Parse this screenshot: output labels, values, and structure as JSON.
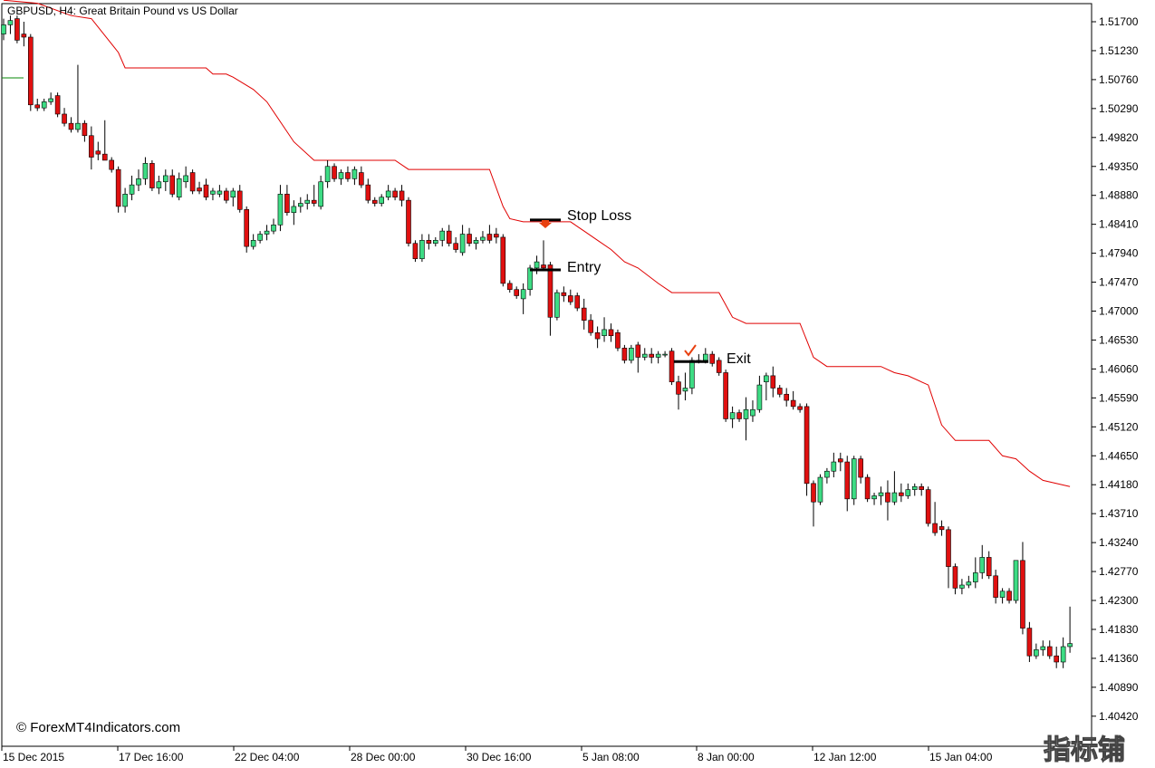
{
  "window": {
    "symbol_line": "GBPUSD, H4:  Great Britain Pound vs US Dollar",
    "watermark": "© ForexMT4Indicators.com",
    "corner_logo": "指标铺"
  },
  "colors": {
    "bull": "#3ddc84",
    "bear": "#e01010",
    "wick": "#000000",
    "indicator": "#e00000",
    "annotation_line": "#000000",
    "arrow": "#e84010",
    "check": "#e84010",
    "grid": "none",
    "background": "#ffffff"
  },
  "annotations": {
    "stop_loss": "Stop Loss",
    "entry": "Entry",
    "exit": "Exit"
  },
  "icons": {
    "stop_arrow": "down-arrow-icon",
    "exit_check": "checkmark-icon"
  },
  "chart_data": {
    "type": "candlestick",
    "title": "GBPUSD, H4:  Great Britain Pound vs US Dollar",
    "ylim": [
      1.4,
      1.52
    ],
    "y_ticks": [
      "1.51700",
      "1.51230",
      "1.50760",
      "1.50290",
      "1.49820",
      "1.49350",
      "1.48880",
      "1.48410",
      "1.47940",
      "1.47470",
      "1.47000",
      "1.46530",
      "1.46060",
      "1.45590",
      "1.45120",
      "1.44650",
      "1.44180",
      "1.43710",
      "1.43240",
      "1.42770",
      "1.42300",
      "1.41830",
      "1.41360",
      "1.40890",
      "1.40420"
    ],
    "x_labels": [
      "15 Dec 2015",
      "17 Dec 16:00",
      "22 Dec 04:00",
      "28 Dec 00:00",
      "30 Dec 16:00",
      "5 Jan 08:00",
      "8 Jan 00:00",
      "12 Jan 12:00",
      "15 Jan 04:00"
    ],
    "grid": false,
    "levels": {
      "stop_loss": 1.4848,
      "entry": 1.4767,
      "exit": 1.4618
    },
    "candles": [
      [
        1.515,
        1.5175,
        1.514,
        1.5165
      ],
      [
        1.5165,
        1.518,
        1.515,
        1.5172
      ],
      [
        1.5175,
        1.518,
        1.5135,
        1.514
      ],
      [
        1.515,
        1.517,
        1.513,
        1.5145
      ],
      [
        1.5145,
        1.515,
        1.5025,
        1.5035
      ],
      [
        1.5035,
        1.5045,
        1.5025,
        1.503
      ],
      [
        1.503,
        1.5045,
        1.5025,
        1.504
      ],
      [
        1.504,
        1.5055,
        1.5035,
        1.5045
      ],
      [
        1.505,
        1.5055,
        1.5015,
        1.502
      ],
      [
        1.502,
        1.503,
        1.5,
        1.5005
      ],
      [
        1.5005,
        1.5015,
        1.499,
        1.4995
      ],
      [
        1.4995,
        1.51,
        1.499,
        1.5005
      ],
      [
        1.5005,
        1.501,
        1.4975,
        1.4985
      ],
      [
        1.4985,
        1.5,
        1.493,
        1.495
      ],
      [
        1.496,
        1.4975,
        1.4945,
        1.4955
      ],
      [
        1.4955,
        1.501,
        1.4945,
        1.4945
      ],
      [
        1.4945,
        1.495,
        1.4925,
        1.493
      ],
      [
        1.493,
        1.4935,
        1.486,
        1.487
      ],
      [
        1.487,
        1.49,
        1.486,
        1.489
      ],
      [
        1.489,
        1.492,
        1.488,
        1.4905
      ],
      [
        1.4905,
        1.493,
        1.4895,
        1.4915
      ],
      [
        1.4915,
        1.495,
        1.4905,
        1.494
      ],
      [
        1.494,
        1.4945,
        1.4895,
        1.49
      ],
      [
        1.49,
        1.492,
        1.489,
        1.491
      ],
      [
        1.491,
        1.493,
        1.4895,
        1.492
      ],
      [
        1.492,
        1.493,
        1.4885,
        1.489
      ],
      [
        1.4885,
        1.4925,
        1.488,
        1.4915
      ],
      [
        1.491,
        1.4935,
        1.49,
        1.492
      ],
      [
        1.4925,
        1.493,
        1.489,
        1.4895
      ],
      [
        1.49,
        1.491,
        1.489,
        1.4895
      ],
      [
        1.4905,
        1.4915,
        1.488,
        1.4885
      ],
      [
        1.489,
        1.49,
        1.488,
        1.4895
      ],
      [
        1.489,
        1.4905,
        1.4885,
        1.4895
      ],
      [
        1.4895,
        1.49,
        1.4875,
        1.488
      ],
      [
        1.4885,
        1.49,
        1.487,
        1.4895
      ],
      [
        1.4895,
        1.4905,
        1.486,
        1.4865
      ],
      [
        1.4865,
        1.487,
        1.4795,
        1.4805
      ],
      [
        1.4805,
        1.4825,
        1.48,
        1.4815
      ],
      [
        1.4815,
        1.483,
        1.481,
        1.4825
      ],
      [
        1.4825,
        1.484,
        1.4815,
        1.483
      ],
      [
        1.483,
        1.485,
        1.4825,
        1.484
      ],
      [
        1.484,
        1.4905,
        1.483,
        1.489
      ],
      [
        1.489,
        1.4905,
        1.4855,
        1.486
      ],
      [
        1.486,
        1.488,
        1.484,
        1.487
      ],
      [
        1.487,
        1.4885,
        1.486,
        1.4875
      ],
      [
        1.4875,
        1.489,
        1.4865,
        1.488
      ],
      [
        1.488,
        1.4905,
        1.487,
        1.4875
      ],
      [
        1.487,
        1.492,
        1.4865,
        1.491
      ],
      [
        1.491,
        1.4945,
        1.49,
        1.4935
      ],
      [
        1.4935,
        1.494,
        1.491,
        1.4915
      ],
      [
        1.4915,
        1.493,
        1.4905,
        1.4925
      ],
      [
        1.4925,
        1.4935,
        1.491,
        1.4915
      ],
      [
        1.4915,
        1.4935,
        1.4905,
        1.493
      ],
      [
        1.4925,
        1.4935,
        1.49,
        1.4905
      ],
      [
        1.4905,
        1.4915,
        1.4875,
        1.488
      ],
      [
        1.488,
        1.4885,
        1.487,
        1.4875
      ],
      [
        1.4875,
        1.489,
        1.487,
        1.4885
      ],
      [
        1.4885,
        1.4905,
        1.488,
        1.4895
      ],
      [
        1.4895,
        1.49,
        1.488,
        1.4885
      ],
      [
        1.4895,
        1.4905,
        1.487,
        1.488
      ],
      [
        1.488,
        1.4885,
        1.4805,
        1.481
      ],
      [
        1.481,
        1.4815,
        1.478,
        1.4785
      ],
      [
        1.4785,
        1.4825,
        1.478,
        1.4815
      ],
      [
        1.4815,
        1.4825,
        1.48,
        1.481
      ],
      [
        1.481,
        1.482,
        1.4805,
        1.4815
      ],
      [
        1.4815,
        1.4835,
        1.4805,
        1.483
      ],
      [
        1.483,
        1.484,
        1.4805,
        1.481
      ],
      [
        1.481,
        1.482,
        1.4795,
        1.48
      ],
      [
        1.4795,
        1.484,
        1.479,
        1.4825
      ],
      [
        1.4825,
        1.4835,
        1.4805,
        1.481
      ],
      [
        1.481,
        1.482,
        1.48,
        1.4815
      ],
      [
        1.4815,
        1.483,
        1.481,
        1.482
      ],
      [
        1.4825,
        1.484,
        1.481,
        1.4815
      ],
      [
        1.4825,
        1.4835,
        1.481,
        1.482
      ],
      [
        1.482,
        1.4825,
        1.474,
        1.4745
      ],
      [
        1.4745,
        1.475,
        1.473,
        1.4735
      ],
      [
        1.4735,
        1.474,
        1.472,
        1.4725
      ],
      [
        1.472,
        1.4745,
        1.4695,
        1.4735
      ],
      [
        1.4735,
        1.4775,
        1.4725,
        1.477
      ],
      [
        1.477,
        1.479,
        1.476,
        1.478
      ],
      [
        1.4775,
        1.4815,
        1.4765,
        1.477
      ],
      [
        1.4775,
        1.478,
        1.466,
        1.469
      ],
      [
        1.469,
        1.4735,
        1.4685,
        1.473
      ],
      [
        1.473,
        1.474,
        1.4715,
        1.4725
      ],
      [
        1.4725,
        1.4735,
        1.471,
        1.4715
      ],
      [
        1.4725,
        1.473,
        1.47,
        1.4705
      ],
      [
        1.4705,
        1.472,
        1.467,
        1.4685
      ],
      [
        1.4685,
        1.4695,
        1.466,
        1.4665
      ],
      [
        1.4665,
        1.4675,
        1.464,
        1.4655
      ],
      [
        1.466,
        1.469,
        1.465,
        1.467
      ],
      [
        1.467,
        1.468,
        1.465,
        1.466
      ],
      [
        1.4665,
        1.467,
        1.4635,
        1.464
      ],
      [
        1.464,
        1.4645,
        1.4615,
        1.462
      ],
      [
        1.462,
        1.4645,
        1.4615,
        1.464
      ],
      [
        1.4645,
        1.465,
        1.46,
        1.4625
      ],
      [
        1.4625,
        1.464,
        1.462,
        1.463
      ],
      [
        1.463,
        1.464,
        1.4615,
        1.4625
      ],
      [
        1.4625,
        1.4635,
        1.4615,
        1.463
      ],
      [
        1.463,
        1.4635,
        1.4625,
        1.463
      ],
      [
        1.4635,
        1.464,
        1.458,
        1.4585
      ],
      [
        1.4585,
        1.4595,
        1.454,
        1.4565
      ],
      [
        1.457,
        1.46,
        1.4555,
        1.4575
      ],
      [
        1.4575,
        1.4625,
        1.4565,
        1.462
      ],
      [
        1.462,
        1.463,
        1.4615,
        1.462
      ],
      [
        1.462,
        1.464,
        1.4615,
        1.463
      ],
      [
        1.463,
        1.4635,
        1.461,
        1.4615
      ],
      [
        1.462,
        1.4625,
        1.4595,
        1.46
      ],
      [
        1.46,
        1.4605,
        1.452,
        1.4525
      ],
      [
        1.4525,
        1.4545,
        1.451,
        1.4535
      ],
      [
        1.4535,
        1.454,
        1.452,
        1.4525
      ],
      [
        1.4525,
        1.456,
        1.449,
        1.454
      ],
      [
        1.453,
        1.4555,
        1.452,
        1.454
      ],
      [
        1.454,
        1.4595,
        1.4535,
        1.458
      ],
      [
        1.4585,
        1.46,
        1.4555,
        1.4595
      ],
      [
        1.4595,
        1.461,
        1.456,
        1.4575
      ],
      [
        1.4575,
        1.458,
        1.456,
        1.4565
      ],
      [
        1.4565,
        1.4575,
        1.4545,
        1.4555
      ],
      [
        1.4555,
        1.457,
        1.454,
        1.4545
      ],
      [
        1.4545,
        1.455,
        1.4535,
        1.454
      ],
      [
        1.4545,
        1.455,
        1.44,
        1.442
      ],
      [
        1.442,
        1.4425,
        1.435,
        1.439
      ],
      [
        1.439,
        1.4435,
        1.4385,
        1.443
      ],
      [
        1.443,
        1.4445,
        1.442,
        1.444
      ],
      [
        1.444,
        1.447,
        1.443,
        1.4455
      ],
      [
        1.446,
        1.447,
        1.444,
        1.4455
      ],
      [
        1.4455,
        1.4465,
        1.4375,
        1.4395
      ],
      [
        1.4395,
        1.4465,
        1.4385,
        1.446
      ],
      [
        1.446,
        1.4465,
        1.442,
        1.443
      ],
      [
        1.443,
        1.4435,
        1.439,
        1.4395
      ],
      [
        1.4395,
        1.4405,
        1.4385,
        1.44
      ],
      [
        1.44,
        1.4415,
        1.4385,
        1.4405
      ],
      [
        1.4405,
        1.4425,
        1.436,
        1.439
      ],
      [
        1.439,
        1.444,
        1.4385,
        1.4405
      ],
      [
        1.4405,
        1.442,
        1.439,
        1.44
      ],
      [
        1.44,
        1.442,
        1.4395,
        1.441
      ],
      [
        1.441,
        1.442,
        1.44,
        1.4415
      ],
      [
        1.4415,
        1.442,
        1.44,
        1.441
      ],
      [
        1.441,
        1.4415,
        1.435,
        1.4355
      ],
      [
        1.4355,
        1.439,
        1.4335,
        1.434
      ],
      [
        1.435,
        1.436,
        1.4335,
        1.4345
      ],
      [
        1.4345,
        1.435,
        1.425,
        1.4285
      ],
      [
        1.4285,
        1.429,
        1.424,
        1.425
      ],
      [
        1.425,
        1.4265,
        1.424,
        1.4255
      ],
      [
        1.4255,
        1.427,
        1.425,
        1.426
      ],
      [
        1.426,
        1.43,
        1.425,
        1.4275
      ],
      [
        1.4275,
        1.432,
        1.4265,
        1.43
      ],
      [
        1.43,
        1.431,
        1.4265,
        1.427
      ],
      [
        1.427,
        1.428,
        1.4225,
        1.4235
      ],
      [
        1.4235,
        1.425,
        1.4225,
        1.4245
      ],
      [
        1.4245,
        1.425,
        1.4225,
        1.423
      ],
      [
        1.423,
        1.4295,
        1.4225,
        1.4295
      ],
      [
        1.4295,
        1.4325,
        1.4175,
        1.4185
      ],
      [
        1.4185,
        1.4195,
        1.413,
        1.414
      ],
      [
        1.414,
        1.416,
        1.4135,
        1.415
      ],
      [
        1.415,
        1.4165,
        1.414,
        1.4155
      ],
      [
        1.4155,
        1.4165,
        1.4135,
        1.414
      ],
      [
        1.414,
        1.4155,
        1.412,
        1.413
      ],
      [
        1.413,
        1.417,
        1.412,
        1.4155
      ],
      [
        1.4155,
        1.422,
        1.4145,
        1.416
      ]
    ],
    "indicator_line": [
      [
        0,
        1.5205
      ],
      [
        5,
        1.52
      ],
      [
        10,
        1.518
      ],
      [
        13,
        1.5175
      ],
      [
        17,
        1.512
      ],
      [
        18,
        1.5095
      ],
      [
        30,
        1.5095
      ],
      [
        31,
        1.5085
      ],
      [
        33,
        1.5085
      ],
      [
        34,
        1.508
      ],
      [
        37,
        1.506
      ],
      [
        39,
        1.504
      ],
      [
        43,
        1.4975
      ],
      [
        46,
        1.4945
      ],
      [
        58,
        1.4945
      ],
      [
        60,
        1.493
      ],
      [
        72,
        1.493
      ],
      [
        74,
        1.487
      ],
      [
        75,
        1.485
      ],
      [
        77,
        1.4845
      ],
      [
        84,
        1.4845
      ],
      [
        86,
        1.483
      ],
      [
        88,
        1.4815
      ],
      [
        90,
        1.48
      ],
      [
        92,
        1.478
      ],
      [
        94,
        1.477
      ],
      [
        97,
        1.4745
      ],
      [
        99,
        1.473
      ],
      [
        106,
        1.473
      ],
      [
        108,
        1.469
      ],
      [
        110,
        1.468
      ],
      [
        118,
        1.468
      ],
      [
        120,
        1.4625
      ],
      [
        122,
        1.461
      ],
      [
        130,
        1.461
      ],
      [
        132,
        1.46
      ],
      [
        134,
        1.4595
      ],
      [
        137,
        1.458
      ],
      [
        139,
        1.4515
      ],
      [
        141,
        1.449
      ],
      [
        146,
        1.449
      ],
      [
        148,
        1.4465
      ],
      [
        150,
        1.446
      ],
      [
        152,
        1.444
      ],
      [
        154,
        1.4425
      ],
      [
        158,
        1.4415
      ]
    ]
  }
}
